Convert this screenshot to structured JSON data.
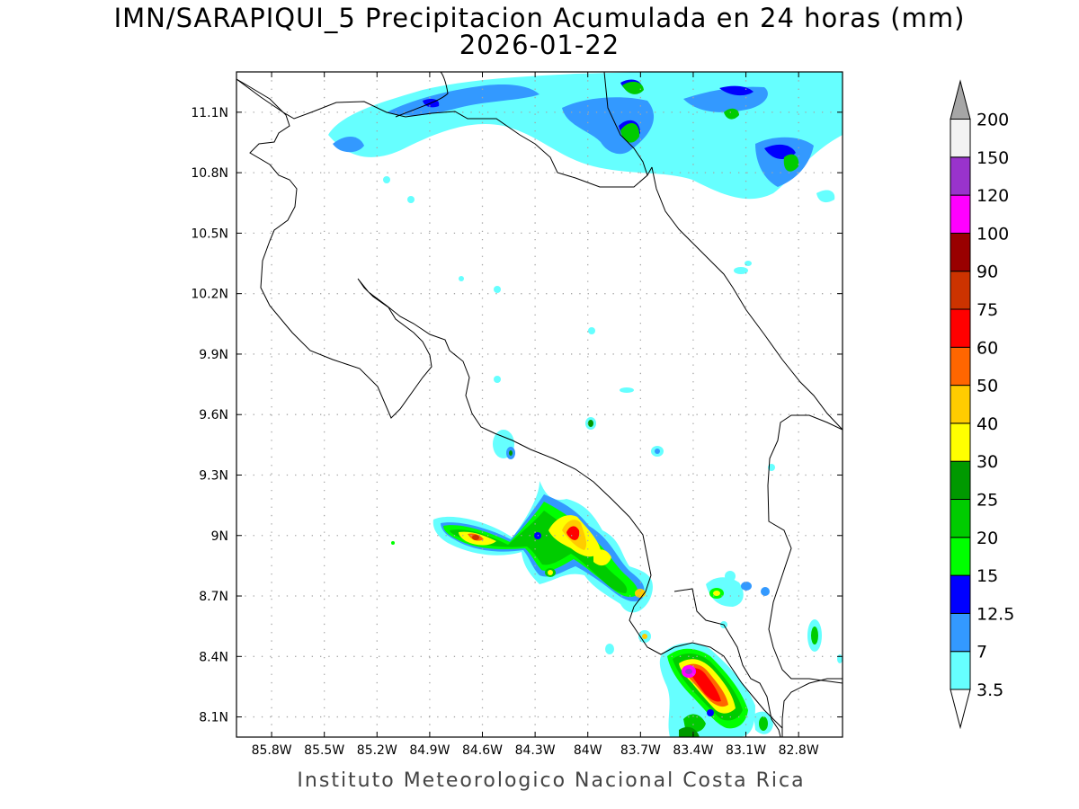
{
  "title": {
    "line1": "IMN/SARAPIQUI_5 Precipitacion Acumulada en 24 horas (mm)",
    "line2": "2026-01-22"
  },
  "footer": "Instituto Meteorologico Nacional Costa Rica",
  "map": {
    "lon_range": [
      -86.0,
      -82.55
    ],
    "lat_range": [
      8.0,
      11.3
    ],
    "grid": true,
    "lon_ticks": [
      {
        "value": -85.8,
        "label": "85.8W"
      },
      {
        "value": -85.5,
        "label": "85.5W"
      },
      {
        "value": -85.2,
        "label": "85.2W"
      },
      {
        "value": -84.9,
        "label": "84.9W"
      },
      {
        "value": -84.6,
        "label": "84.6W"
      },
      {
        "value": -84.3,
        "label": "84.3W"
      },
      {
        "value": -84.0,
        "label": "84W"
      },
      {
        "value": -83.7,
        "label": "83.7W"
      },
      {
        "value": -83.4,
        "label": "83.4W"
      },
      {
        "value": -83.1,
        "label": "83.1W"
      },
      {
        "value": -82.8,
        "label": "82.8W"
      }
    ],
    "lat_ticks": [
      {
        "value": 8.1,
        "label": "8.1N"
      },
      {
        "value": 8.4,
        "label": "8.4N"
      },
      {
        "value": 8.7,
        "label": "8.7N"
      },
      {
        "value": 9.0,
        "label": "9N"
      },
      {
        "value": 9.3,
        "label": "9.3N"
      },
      {
        "value": 9.6,
        "label": "9.6N"
      },
      {
        "value": 9.9,
        "label": "9.9N"
      },
      {
        "value": 10.2,
        "label": "10.2N"
      },
      {
        "value": 10.5,
        "label": "10.5N"
      },
      {
        "value": 10.8,
        "label": "10.8N"
      },
      {
        "value": 11.1,
        "label": "11.1N"
      }
    ],
    "colorbar": {
      "levels": [
        "3.5",
        "7",
        "12.5",
        "15",
        "20",
        "25",
        "30",
        "40",
        "50",
        "60",
        "75",
        "90",
        "100",
        "120",
        "150",
        "200"
      ],
      "colors": [
        "#66ffff",
        "#3399ff",
        "#0000ff",
        "#00ff00",
        "#00cc00",
        "#009900",
        "#ffff00",
        "#ffcc00",
        "#ff6600",
        "#ff0000",
        "#cc3300",
        "#990000",
        "#ff00ff",
        "#9933cc",
        "#f2f2f2",
        "#a6a6a6"
      ]
    },
    "colors": {
      "coastline": "#000000",
      "grid": "#a6a6a6",
      "frame": "#000000"
    }
  }
}
